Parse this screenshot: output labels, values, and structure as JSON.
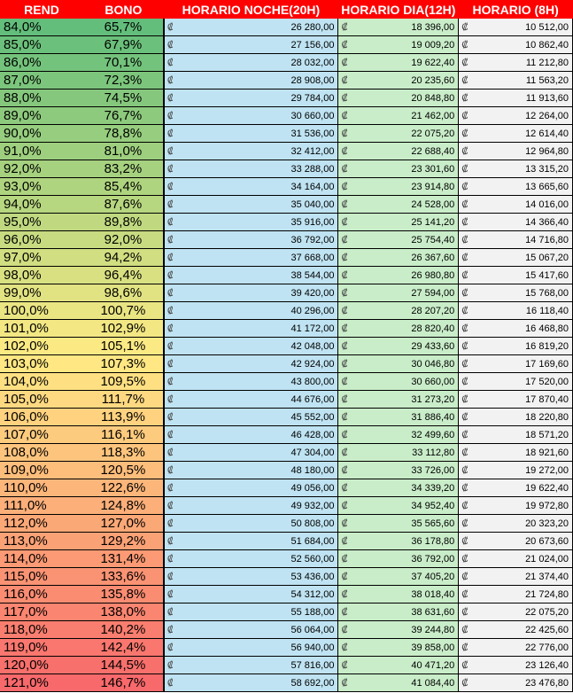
{
  "headers": {
    "rend": "REND",
    "bono": "BONO",
    "noche": "HORARIO NOCHE(20H)",
    "dia": "HORARIO DIA(12H)",
    "h8": "HORARIO (8H)"
  },
  "currency_symbol": "₡",
  "rows": [
    {
      "rend": "84,0%",
      "bono": "65,7%",
      "noche": "26 280,00",
      "dia": "18 396,00",
      "h8": "10 512,00"
    },
    {
      "rend": "85,0%",
      "bono": "67,9%",
      "noche": "27 156,00",
      "dia": "19 009,20",
      "h8": "10 862,40"
    },
    {
      "rend": "86,0%",
      "bono": "70,1%",
      "noche": "28 032,00",
      "dia": "19 622,40",
      "h8": "11 212,80"
    },
    {
      "rend": "87,0%",
      "bono": "72,3%",
      "noche": "28 908,00",
      "dia": "20 235,60",
      "h8": "11 563,20"
    },
    {
      "rend": "88,0%",
      "bono": "74,5%",
      "noche": "29 784,00",
      "dia": "20 848,80",
      "h8": "11 913,60"
    },
    {
      "rend": "89,0%",
      "bono": "76,7%",
      "noche": "30 660,00",
      "dia": "21 462,00",
      "h8": "12 264,00"
    },
    {
      "rend": "90,0%",
      "bono": "78,8%",
      "noche": "31 536,00",
      "dia": "22 075,20",
      "h8": "12 614,40"
    },
    {
      "rend": "91,0%",
      "bono": "81,0%",
      "noche": "32 412,00",
      "dia": "22 688,40",
      "h8": "12 964,80"
    },
    {
      "rend": "92,0%",
      "bono": "83,2%",
      "noche": "33 288,00",
      "dia": "23 301,60",
      "h8": "13 315,20"
    },
    {
      "rend": "93,0%",
      "bono": "85,4%",
      "noche": "34 164,00",
      "dia": "23 914,80",
      "h8": "13 665,60"
    },
    {
      "rend": "94,0%",
      "bono": "87,6%",
      "noche": "35 040,00",
      "dia": "24 528,00",
      "h8": "14 016,00"
    },
    {
      "rend": "95,0%",
      "bono": "89,8%",
      "noche": "35 916,00",
      "dia": "25 141,20",
      "h8": "14 366,40"
    },
    {
      "rend": "96,0%",
      "bono": "92,0%",
      "noche": "36 792,00",
      "dia": "25 754,40",
      "h8": "14 716,80"
    },
    {
      "rend": "97,0%",
      "bono": "94,2%",
      "noche": "37 668,00",
      "dia": "26 367,60",
      "h8": "15 067,20"
    },
    {
      "rend": "98,0%",
      "bono": "96,4%",
      "noche": "38 544,00",
      "dia": "26 980,80",
      "h8": "15 417,60"
    },
    {
      "rend": "99,0%",
      "bono": "98,6%",
      "noche": "39 420,00",
      "dia": "27 594,00",
      "h8": "15 768,00"
    },
    {
      "rend": "100,0%",
      "bono": "100,7%",
      "noche": "40 296,00",
      "dia": "28 207,20",
      "h8": "16 118,40"
    },
    {
      "rend": "101,0%",
      "bono": "102,9%",
      "noche": "41 172,00",
      "dia": "28 820,40",
      "h8": "16 468,80"
    },
    {
      "rend": "102,0%",
      "bono": "105,1%",
      "noche": "42 048,00",
      "dia": "29 433,60",
      "h8": "16 819,20"
    },
    {
      "rend": "103,0%",
      "bono": "107,3%",
      "noche": "42 924,00",
      "dia": "30 046,80",
      "h8": "17 169,60"
    },
    {
      "rend": "104,0%",
      "bono": "109,5%",
      "noche": "43 800,00",
      "dia": "30 660,00",
      "h8": "17 520,00"
    },
    {
      "rend": "105,0%",
      "bono": "111,7%",
      "noche": "44 676,00",
      "dia": "31 273,20",
      "h8": "17 870,40"
    },
    {
      "rend": "106,0%",
      "bono": "113,9%",
      "noche": "45 552,00",
      "dia": "31 886,40",
      "h8": "18 220,80"
    },
    {
      "rend": "107,0%",
      "bono": "116,1%",
      "noche": "46 428,00",
      "dia": "32 499,60",
      "h8": "18 571,20"
    },
    {
      "rend": "108,0%",
      "bono": "118,3%",
      "noche": "47 304,00",
      "dia": "33 112,80",
      "h8": "18 921,60"
    },
    {
      "rend": "109,0%",
      "bono": "120,5%",
      "noche": "48 180,00",
      "dia": "33 726,00",
      "h8": "19 272,00"
    },
    {
      "rend": "110,0%",
      "bono": "122,6%",
      "noche": "49 056,00",
      "dia": "34 339,20",
      "h8": "19 622,40"
    },
    {
      "rend": "111,0%",
      "bono": "124,8%",
      "noche": "49 932,00",
      "dia": "34 952,40",
      "h8": "19 972,80"
    },
    {
      "rend": "112,0%",
      "bono": "127,0%",
      "noche": "50 808,00",
      "dia": "35 565,60",
      "h8": "20 323,20"
    },
    {
      "rend": "113,0%",
      "bono": "129,2%",
      "noche": "51 684,00",
      "dia": "36 178,80",
      "h8": "20 673,60"
    },
    {
      "rend": "114,0%",
      "bono": "131,4%",
      "noche": "52 560,00",
      "dia": "36 792,00",
      "h8": "21 024,00"
    },
    {
      "rend": "115,0%",
      "bono": "133,6%",
      "noche": "53 436,00",
      "dia": "37 405,20",
      "h8": "21 374,40"
    },
    {
      "rend": "116,0%",
      "bono": "135,8%",
      "noche": "54 312,00",
      "dia": "38 018,40",
      "h8": "21 724,80"
    },
    {
      "rend": "117,0%",
      "bono": "138,0%",
      "noche": "55 188,00",
      "dia": "38 631,60",
      "h8": "22 075,20"
    },
    {
      "rend": "118,0%",
      "bono": "140,2%",
      "noche": "56 064,00",
      "dia": "39 244,80",
      "h8": "22 425,60"
    },
    {
      "rend": "119,0%",
      "bono": "142,4%",
      "noche": "56 940,00",
      "dia": "39 858,00",
      "h8": "22 776,00"
    },
    {
      "rend": "120,0%",
      "bono": "144,5%",
      "noche": "57 816,00",
      "dia": "40 471,20",
      "h8": "23 126,40"
    },
    {
      "rend": "121,0%",
      "bono": "146,7%",
      "noche": "58 692,00",
      "dia": "41 084,40",
      "h8": "23 476,80"
    }
  ],
  "colors": {
    "header_bg": "#ff0000",
    "header_text": "#ffffff",
    "scale_low": "#63be7b",
    "scale_mid": "#ffeb84",
    "scale_high": "#f8696b",
    "noche_bg": "#bfe3f2",
    "dia_bg": "#c9edc9",
    "h8_bg": "#f2f2f2"
  }
}
